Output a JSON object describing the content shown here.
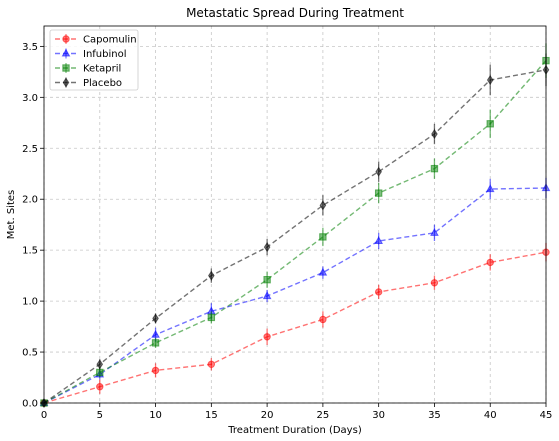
{
  "chart_data": {
    "type": "line",
    "title": "Metastatic Spread During Treatment",
    "xlabel": "Treatment Duration (Days)",
    "ylabel": "Met. Sites",
    "xlim": [
      0,
      45
    ],
    "ylim": [
      0,
      3.7
    ],
    "xticks": [
      0,
      5,
      10,
      15,
      20,
      25,
      30,
      35,
      40,
      45
    ],
    "yticks": [
      0.0,
      0.5,
      1.0,
      1.5,
      2.0,
      2.5,
      3.0,
      3.5
    ],
    "ytick_labels": [
      "0.0",
      "0.5",
      "1.0",
      "1.5",
      "2.0",
      "2.5",
      "3.0",
      "3.5"
    ],
    "grid": true,
    "legend_position": "top-left",
    "x": [
      0,
      5,
      10,
      15,
      20,
      25,
      30,
      35,
      40,
      45
    ],
    "series": [
      {
        "name": "Capomulin",
        "color": "#ff0000",
        "marker": "circle",
        "values": [
          0,
          0.16,
          0.32,
          0.38,
          0.65,
          0.82,
          1.09,
          1.18,
          1.38,
          1.48
        ],
        "errors": [
          0,
          0.07,
          0.07,
          0.06,
          0.08,
          0.08,
          0.07,
          0.07,
          0.08,
          0.09
        ]
      },
      {
        "name": "Infubinol",
        "color": "#0000ff",
        "marker": "triangle",
        "values": [
          0,
          0.28,
          0.67,
          0.9,
          1.05,
          1.28,
          1.59,
          1.67,
          2.1,
          2.11
        ],
        "errors": [
          0,
          0.05,
          0.07,
          0.08,
          0.06,
          0.06,
          0.08,
          0.08,
          0.1,
          0.1
        ]
      },
      {
        "name": "Ketapril",
        "color": "#008000",
        "marker": "square",
        "values": [
          0,
          0.3,
          0.59,
          0.84,
          1.21,
          1.63,
          2.06,
          2.3,
          2.74,
          3.36
        ],
        "errors": [
          0,
          0.05,
          0.05,
          0.06,
          0.08,
          0.09,
          0.1,
          0.1,
          0.14,
          0.17
        ]
      },
      {
        "name": "Placebo",
        "color": "#000000",
        "marker": "diamond",
        "values": [
          0,
          0.38,
          0.83,
          1.25,
          1.53,
          1.94,
          2.27,
          2.64,
          3.17,
          3.27
        ],
        "errors": [
          0,
          0.05,
          0.05,
          0.07,
          0.08,
          0.1,
          0.1,
          0.1,
          0.15,
          0.16
        ]
      }
    ]
  }
}
